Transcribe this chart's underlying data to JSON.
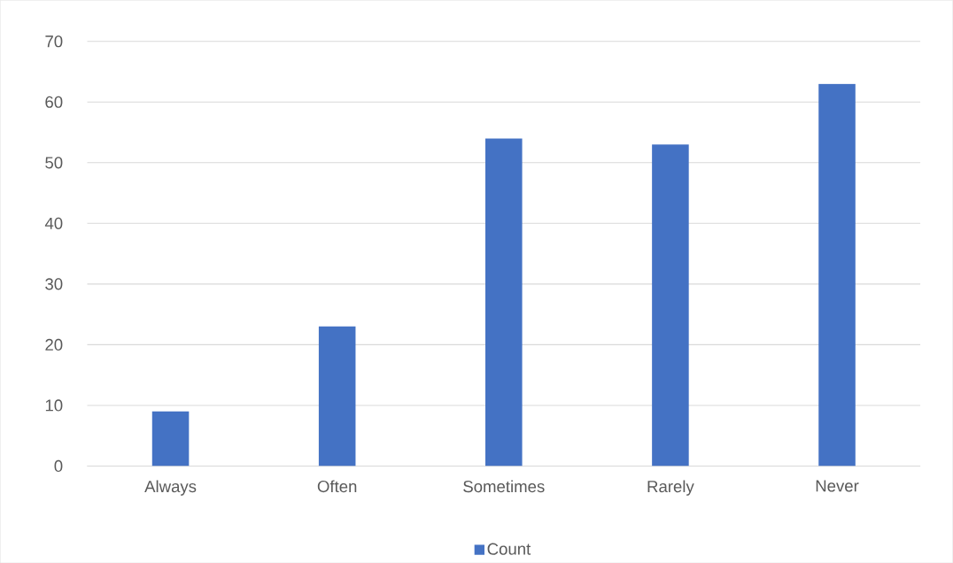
{
  "chart_data": {
    "type": "bar",
    "categories": [
      "Always",
      "Often",
      "Sometimes",
      "Rarely",
      "Never"
    ],
    "series": [
      {
        "name": "Count",
        "color": "#4472c4",
        "values": [
          9,
          23,
          54,
          53,
          63
        ]
      }
    ],
    "ylim": [
      0,
      70
    ],
    "yticks": [
      0,
      10,
      20,
      30,
      40,
      50,
      60,
      70
    ],
    "grid": "y",
    "legend": "bottom"
  }
}
